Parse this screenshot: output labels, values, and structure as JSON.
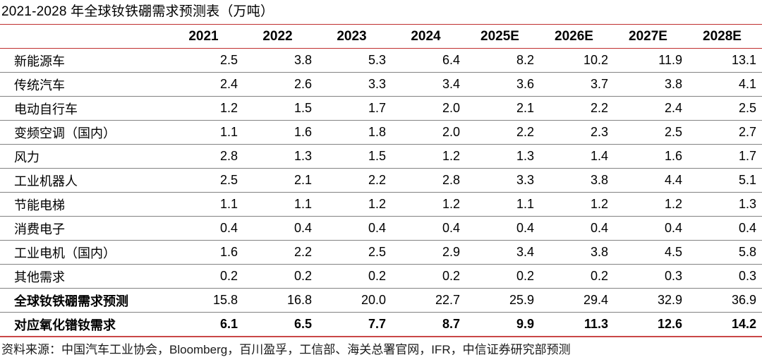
{
  "title": "2021-2028 年全球钕铁硼需求预测表（万吨）",
  "source_note": "资料来源：中国汽车工业协会，Bloomberg，百川盈孚，工信部、海关总署官网，IFR，中信证券研究部预测",
  "colors": {
    "accent_red": "#bf2f2f",
    "bottom_rule_red": "#c94747",
    "row_separator_gray": "#828282"
  },
  "chart_data": {
    "type": "table",
    "title": "2021-2028 年全球钕铁硼需求预测表（万吨）",
    "columns": [
      "2021",
      "2022",
      "2023",
      "2024",
      "2025E",
      "2026E",
      "2027E",
      "2028E"
    ],
    "rows": [
      {
        "label": "新能源车",
        "values": [
          "2.5",
          "3.8",
          "5.3",
          "6.4",
          "8.2",
          "10.2",
          "11.9",
          "13.1"
        ],
        "bold_label": false,
        "bold_values": false
      },
      {
        "label": "传统汽车",
        "values": [
          "2.4",
          "2.6",
          "3.3",
          "3.4",
          "3.6",
          "3.7",
          "3.8",
          "4.1"
        ],
        "bold_label": false,
        "bold_values": false
      },
      {
        "label": "电动自行车",
        "values": [
          "1.2",
          "1.5",
          "1.7",
          "2.0",
          "2.1",
          "2.2",
          "2.4",
          "2.5"
        ],
        "bold_label": false,
        "bold_values": false
      },
      {
        "label": "变频空调（国内）",
        "values": [
          "1.1",
          "1.6",
          "1.8",
          "2.0",
          "2.2",
          "2.3",
          "2.5",
          "2.7"
        ],
        "bold_label": false,
        "bold_values": false
      },
      {
        "label": "风力",
        "values": [
          "2.8",
          "1.3",
          "1.5",
          "1.2",
          "1.3",
          "1.4",
          "1.6",
          "1.7"
        ],
        "bold_label": false,
        "bold_values": false
      },
      {
        "label": "工业机器人",
        "values": [
          "2.5",
          "2.1",
          "2.2",
          "2.8",
          "3.3",
          "3.8",
          "4.4",
          "5.1"
        ],
        "bold_label": false,
        "bold_values": false
      },
      {
        "label": "节能电梯",
        "values": [
          "1.1",
          "1.1",
          "1.2",
          "1.2",
          "1.1",
          "1.2",
          "1.2",
          "1.3"
        ],
        "bold_label": false,
        "bold_values": false
      },
      {
        "label": "消费电子",
        "values": [
          "0.4",
          "0.4",
          "0.4",
          "0.4",
          "0.4",
          "0.4",
          "0.4",
          "0.4"
        ],
        "bold_label": false,
        "bold_values": false
      },
      {
        "label": "工业电机（国内）",
        "values": [
          "1.6",
          "2.2",
          "2.5",
          "2.9",
          "3.4",
          "3.8",
          "4.5",
          "5.8"
        ],
        "bold_label": false,
        "bold_values": false
      },
      {
        "label": "其他需求",
        "values": [
          "0.2",
          "0.2",
          "0.2",
          "0.2",
          "0.2",
          "0.2",
          "0.3",
          "0.3"
        ],
        "bold_label": false,
        "bold_values": false
      },
      {
        "label": "全球钕铁硼需求预测",
        "values": [
          "15.8",
          "16.8",
          "20.0",
          "22.7",
          "25.9",
          "29.4",
          "32.9",
          "36.9"
        ],
        "bold_label": true,
        "bold_values": false
      },
      {
        "label": "对应氧化镨钕需求",
        "values": [
          "6.1",
          "6.5",
          "7.7",
          "8.7",
          "9.9",
          "11.3",
          "12.6",
          "14.2"
        ],
        "bold_label": true,
        "bold_values": true
      }
    ]
  }
}
